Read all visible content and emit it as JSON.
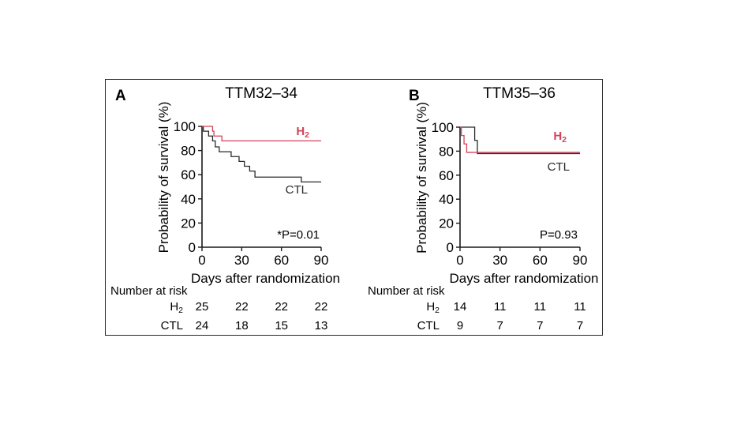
{
  "colors": {
    "h2": "#d0455a",
    "ctl": "#2a2a2a",
    "axis": "#1a1a1a"
  },
  "chart_data": [
    {
      "type": "line",
      "subtype": "kaplan-meier",
      "panel_label": "A",
      "title": "TTM32–34",
      "xlabel": "Days after randomization",
      "ylabel": "Probability of survival (%)",
      "xlim": [
        0,
        90
      ],
      "ylim": [
        0,
        100
      ],
      "xticks": [
        0,
        30,
        60,
        90
      ],
      "yticks": [
        0,
        20,
        40,
        60,
        80,
        100
      ],
      "annotation": "*P=0.01",
      "series": [
        {
          "name": "H2",
          "label_main": "H",
          "label_sub": "2",
          "color": "#d0455a",
          "steps": [
            [
              0,
              100
            ],
            [
              8,
              96
            ],
            [
              9,
              92
            ],
            [
              15,
              88
            ],
            [
              90,
              88
            ]
          ]
        },
        {
          "name": "CTL",
          "label_main": "CTL",
          "label_sub": "",
          "color": "#2a2a2a",
          "steps": [
            [
              0,
              100
            ],
            [
              1,
              96
            ],
            [
              5,
              92
            ],
            [
              8,
              88
            ],
            [
              10,
              83
            ],
            [
              13,
              79
            ],
            [
              22,
              75
            ],
            [
              28,
              71
            ],
            [
              32,
              67
            ],
            [
              36,
              63
            ],
            [
              40,
              58
            ],
            [
              75,
              54
            ],
            [
              90,
              54
            ]
          ]
        }
      ],
      "risk_table": {
        "title": "Number at risk",
        "rows": [
          {
            "label_main": "H",
            "label_sub": "2",
            "values": [
              25,
              22,
              22,
              22
            ]
          },
          {
            "label_main": "CTL",
            "label_sub": "",
            "values": [
              24,
              18,
              15,
              13
            ]
          }
        ]
      }
    },
    {
      "type": "line",
      "subtype": "kaplan-meier",
      "panel_label": "B",
      "title": "TTM35–36",
      "xlabel": "Days after randomization",
      "ylabel": "Probability of survival (%)",
      "xlim": [
        0,
        90
      ],
      "ylim": [
        0,
        100
      ],
      "xticks": [
        0,
        30,
        60,
        90
      ],
      "yticks": [
        0,
        20,
        40,
        60,
        80,
        100
      ],
      "annotation": "P=0.93",
      "series": [
        {
          "name": "H2",
          "label_main": "H",
          "label_sub": "2",
          "color": "#d0455a",
          "steps": [
            [
              0,
              100
            ],
            [
              1,
              93
            ],
            [
              3,
              86
            ],
            [
              5,
              79
            ],
            [
              90,
              79
            ]
          ]
        },
        {
          "name": "CTL",
          "label_main": "CTL",
          "label_sub": "",
          "color": "#2a2a2a",
          "steps": [
            [
              0,
              100
            ],
            [
              11,
              89
            ],
            [
              13,
              78
            ],
            [
              90,
              78
            ]
          ]
        }
      ],
      "risk_table": {
        "title": "Number at risk",
        "rows": [
          {
            "label_main": "H",
            "label_sub": "2",
            "values": [
              14,
              11,
              11,
              11
            ]
          },
          {
            "label_main": "CTL",
            "label_sub": "",
            "values": [
              9,
              7,
              7,
              7
            ]
          }
        ]
      }
    }
  ]
}
